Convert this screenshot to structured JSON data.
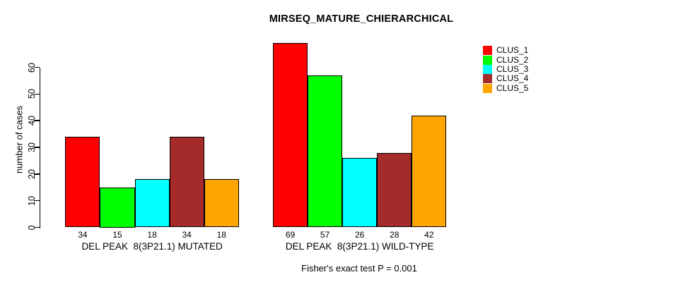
{
  "chart_data": {
    "type": "bar",
    "title": "MIRSEQ_MATURE_CHIERARCHICAL",
    "ylabel": "number of cases",
    "xlabel": "",
    "note": "Fisher's exact test P = 0.001",
    "ylim": [
      0,
      60
    ],
    "yticks": [
      0,
      10,
      20,
      30,
      40,
      50,
      60
    ],
    "grid": false,
    "legend_position": "top-right",
    "bar_border_color": "#000000",
    "categories": [
      "DEL PEAK  8(3P21.1) MUTATED",
      "DEL PEAK  8(3P21.1) WILD-TYPE"
    ],
    "series": [
      {
        "name": "CLUS_1",
        "color": "#FF0000",
        "values": [
          34,
          69
        ]
      },
      {
        "name": "CLUS_2",
        "color": "#00FF00",
        "values": [
          15,
          57
        ]
      },
      {
        "name": "CLUS_3",
        "color": "#00FFFF",
        "values": [
          18,
          26
        ]
      },
      {
        "name": "CLUS_4",
        "color": "#A52A2A",
        "values": [
          34,
          28
        ]
      },
      {
        "name": "CLUS_5",
        "color": "#FFA500",
        "values": [
          18,
          42
        ]
      }
    ],
    "groups": [
      {
        "label": "DEL PEAK  8(3P21.1) MUTATED",
        "values": [
          34,
          15,
          18,
          34,
          18
        ]
      },
      {
        "label": "DEL PEAK  8(3P21.1) WILD-TYPE",
        "values": [
          69,
          57,
          26,
          28,
          42
        ]
      }
    ]
  }
}
